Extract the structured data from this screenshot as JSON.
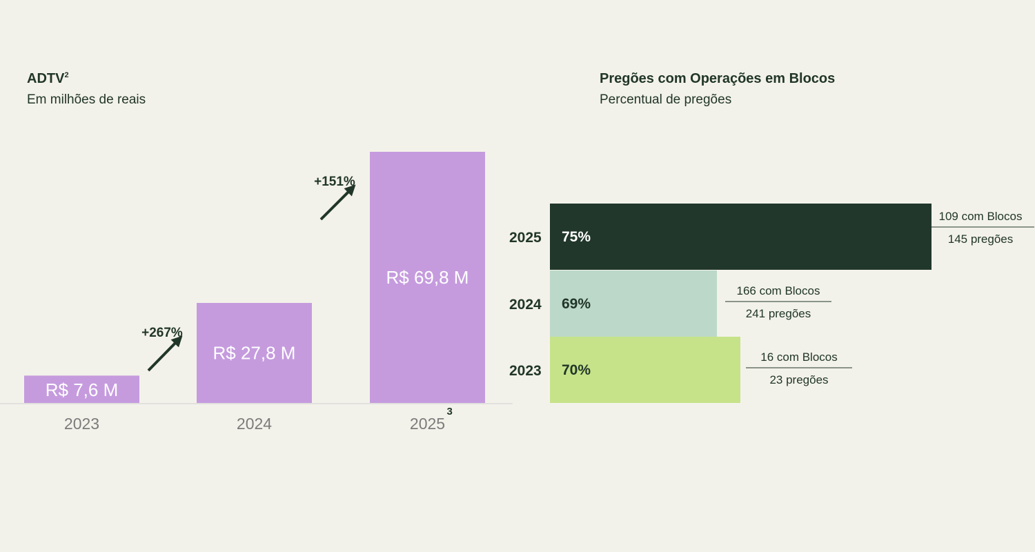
{
  "left_chart": {
    "title": "ADTV",
    "title_sup": "2",
    "subtitle": "Em milhões de reais"
  },
  "right_chart": {
    "title": "Pregões com Operações em Blocos",
    "subtitle": "Percentual de pregões"
  },
  "chart_data": [
    {
      "type": "bar",
      "title": "ADTV",
      "subtitle": "Em milhões de reais",
      "categories": [
        "2023",
        "2024",
        "2025"
      ],
      "category_sup": [
        "",
        "",
        "3"
      ],
      "values": [
        7.6,
        27.8,
        69.8
      ],
      "value_labels": [
        "R$ 7,6 M",
        "R$ 27,8 M",
        "R$ 69,8 M"
      ],
      "ylim": [
        0,
        69.8
      ],
      "grid": false,
      "growth_annotations": [
        {
          "from": "2023",
          "to": "2024",
          "label": "+267%"
        },
        {
          "from": "2024",
          "to": "2025",
          "label": "+151%"
        }
      ],
      "colors": {
        "bar": "#c59bde",
        "axis": "#d9d9d9",
        "arrow": "#213628"
      }
    },
    {
      "type": "bar",
      "orientation": "horizontal",
      "title": "Pregões com Operações em Blocos",
      "subtitle": "Percentual de pregões",
      "categories": [
        "2025",
        "2024",
        "2023"
      ],
      "values": [
        75,
        69,
        70
      ],
      "value_labels": [
        "75%",
        "69%",
        "70%"
      ],
      "fraction_labels": [
        {
          "numerator": "109 com Blocos",
          "denominator": "145 pregões"
        },
        {
          "numerator": "166 com Blocos",
          "denominator": "241 pregões"
        },
        {
          "numerator": "16 com Blocos",
          "denominator": "23 pregões"
        }
      ],
      "bar_colors": [
        "#21372b",
        "#bcd8c9",
        "#c6e38a"
      ],
      "label_colors": [
        "#ffffff",
        "#213628",
        "#213628"
      ],
      "grid": false
    }
  ]
}
